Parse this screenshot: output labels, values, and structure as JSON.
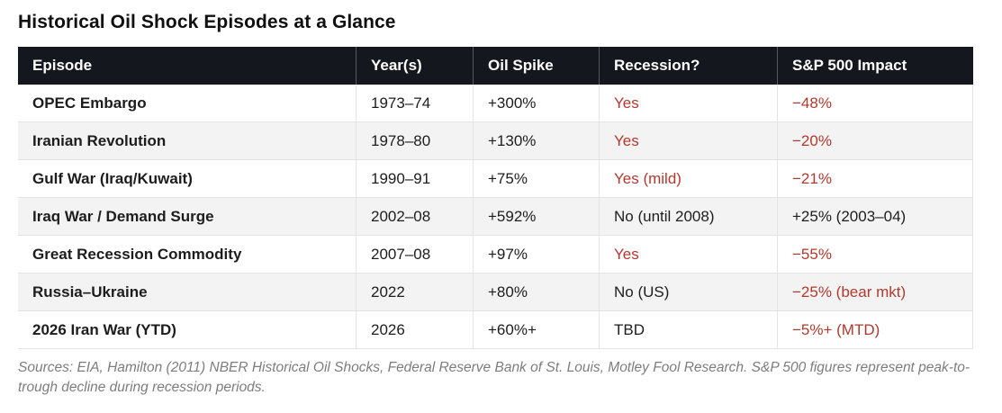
{
  "colors": {
    "header_bg": "#14171e",
    "header_text": "#ffffff",
    "negative_red": "#b03a2e",
    "body_text": "#1d1d1d",
    "row_alt_bg": "#f3f3f3",
    "divider": "#e4e4e4",
    "footnote_gray": "#7d7d7d"
  },
  "chart_data": {
    "type": "table",
    "title": "Historical Oil Shock Episodes at a Glance",
    "columns": [
      "Episode",
      "Year(s)",
      "Oil Spike",
      "Recession?",
      "S&P 500 Impact"
    ],
    "rows": [
      {
        "episode": "OPEC Embargo",
        "years": "1973–74",
        "oil_spike": "+300%",
        "recession": {
          "text": "Yes",
          "highlight": "red"
        },
        "sp500": {
          "text": "−48%",
          "highlight": "red"
        }
      },
      {
        "episode": "Iranian Revolution",
        "years": "1978–80",
        "oil_spike": "+130%",
        "recession": {
          "text": "Yes",
          "highlight": "red"
        },
        "sp500": {
          "text": "−20%",
          "highlight": "red"
        }
      },
      {
        "episode": "Gulf War (Iraq/Kuwait)",
        "years": "1990–91",
        "oil_spike": "+75%",
        "recession": {
          "text": "Yes (mild)",
          "highlight": "red"
        },
        "sp500": {
          "text": "−21%",
          "highlight": "red"
        }
      },
      {
        "episode": "Iraq War / Demand Surge",
        "years": "2002–08",
        "oil_spike": "+592%",
        "recession": {
          "text": "No (until 2008)",
          "highlight": "dark"
        },
        "sp500": {
          "text": "+25% (2003–04)",
          "highlight": "dark"
        }
      },
      {
        "episode": "Great Recession Commodity",
        "years": "2007–08",
        "oil_spike": "+97%",
        "recession": {
          "text": "Yes",
          "highlight": "red"
        },
        "sp500": {
          "text": "−55%",
          "highlight": "red"
        }
      },
      {
        "episode": "Russia–Ukraine",
        "years": "2022",
        "oil_spike": "+80%",
        "recession": {
          "text": "No (US)",
          "highlight": "dark"
        },
        "sp500": {
          "text": "−25% (bear mkt)",
          "highlight": "red"
        }
      },
      {
        "episode": "2026 Iran War (YTD)",
        "years": "2026",
        "oil_spike": "+60%+",
        "recession": {
          "text": "TBD",
          "highlight": "dark"
        },
        "sp500": {
          "text": "−5%+ (MTD)",
          "highlight": "red"
        }
      }
    ],
    "footnote": "Sources: EIA, Hamilton (2011) NBER Historical Oil Shocks, Federal Reserve Bank of St. Louis, Motley Fool Research. S&P 500 figures represent peak-to-trough decline during recession periods."
  }
}
